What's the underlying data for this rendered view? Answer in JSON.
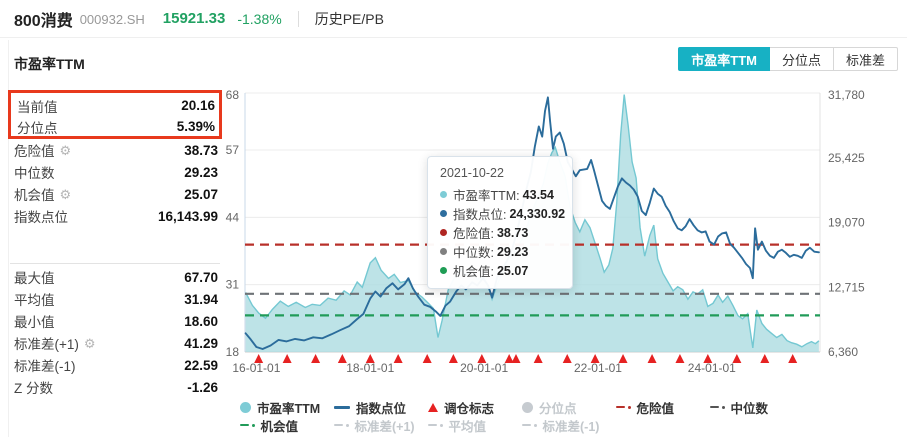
{
  "header": {
    "name": "800消费",
    "code": "000932.SH",
    "price": "15921.33",
    "change": "-1.38%",
    "menu": "历史PE/PB",
    "up_down_color": "#21a162"
  },
  "panel": {
    "title": "市盈率TTM"
  },
  "stats": {
    "highlight": [
      {
        "label": "当前值",
        "value": "20.16",
        "gear": false
      },
      {
        "label": "分位点",
        "value": "5.39%",
        "gear": false
      }
    ],
    "group1": [
      {
        "label": "危险值",
        "value": "38.73",
        "gear": true
      },
      {
        "label": "中位数",
        "value": "29.23",
        "gear": false
      },
      {
        "label": "机会值",
        "value": "25.07",
        "gear": true
      },
      {
        "label": "指数点位",
        "value": "16,143.99",
        "gear": false
      }
    ],
    "group2": [
      {
        "label": "最大值",
        "value": "67.70",
        "gear": false
      },
      {
        "label": "平均值",
        "value": "31.94",
        "gear": false
      },
      {
        "label": "最小值",
        "value": "18.60",
        "gear": false
      },
      {
        "label": "标准差(+1)",
        "value": "41.29",
        "gear": true
      },
      {
        "label": "标准差(-1)",
        "value": "22.59",
        "gear": false
      },
      {
        "label": "Z 分数",
        "value": "-1.26",
        "gear": false
      }
    ],
    "highlight_border_color": "#e8391d"
  },
  "tabs": [
    {
      "label": "市盈率TTM",
      "active": true
    },
    {
      "label": "分位点",
      "active": false
    },
    {
      "label": "标准差",
      "active": false
    }
  ],
  "tooltip": {
    "date": "2021-10-22",
    "rows": [
      {
        "label": "市盈率TTM",
        "value": "43.54",
        "color": "#7eccd6"
      },
      {
        "label": "指数点位",
        "value": "24,330.92",
        "color": "#2e6e9e"
      },
      {
        "label": "危险值",
        "value": "38.73",
        "color": "#b02622"
      },
      {
        "label": "中位数",
        "value": "29.23",
        "color": "#808080"
      },
      {
        "label": "机会值",
        "value": "25.07",
        "color": "#1f9d55"
      }
    ]
  },
  "chart_data": {
    "type": "line",
    "title": "市盈率TTM 与 指数点位",
    "grid": true,
    "left_axis": {
      "label": "市盈率TTM",
      "ticks": [
        18,
        31,
        44,
        57,
        68
      ],
      "range": [
        18,
        68
      ]
    },
    "right_axis": {
      "label": "指数点位",
      "ticks": [
        "6,360",
        "12,715",
        "19,070",
        "25,425",
        "31,780"
      ],
      "tick_values": [
        6360,
        12715,
        19070,
        25425,
        31780
      ],
      "range": [
        6360,
        31780
      ]
    },
    "x_axis": {
      "ticks": [
        "16-01-01",
        "18-01-01",
        "20-01-01",
        "22-01-01",
        "24-01-01"
      ],
      "tick_t": [
        2016,
        2018,
        2020,
        2022,
        2024
      ],
      "range": [
        2015.8,
        2025.9
      ]
    },
    "hlines": [
      {
        "name": "危险值",
        "value": 38.73,
        "color": "#b8302a"
      },
      {
        "name": "中位数",
        "value": 29.23,
        "color": "#6f7377"
      },
      {
        "name": "机会值",
        "value": 25.07,
        "color": "#219b59"
      }
    ],
    "series": [
      {
        "name": "市盈率TTM",
        "type": "area",
        "axis": "left",
        "line_color": "#74c8d2",
        "fill_color": "#aedde2",
        "points": [
          [
            2015.81,
            29.5
          ],
          [
            2015.93,
            27.0
          ],
          [
            2016.04,
            25.5
          ],
          [
            2016.16,
            24.5
          ],
          [
            2016.28,
            26.2
          ],
          [
            2016.42,
            27.8
          ],
          [
            2016.56,
            26.8
          ],
          [
            2016.7,
            27.6
          ],
          [
            2016.86,
            26.6
          ],
          [
            2016.98,
            27.2
          ],
          [
            2017.12,
            27.0
          ],
          [
            2017.26,
            28.4
          ],
          [
            2017.4,
            28.0
          ],
          [
            2017.54,
            29.8
          ],
          [
            2017.65,
            29.0
          ],
          [
            2017.77,
            31.5
          ],
          [
            2017.86,
            30.5
          ],
          [
            2018.0,
            35.2
          ],
          [
            2018.09,
            36.2
          ],
          [
            2018.19,
            33.8
          ],
          [
            2018.32,
            32.2
          ],
          [
            2018.42,
            33.0
          ],
          [
            2018.53,
            31.4
          ],
          [
            2018.67,
            31.8
          ],
          [
            2018.79,
            29.6
          ],
          [
            2018.91,
            28.6
          ],
          [
            2019.02,
            27.4
          ],
          [
            2019.11,
            26.4
          ],
          [
            2019.19,
            20.8
          ],
          [
            2019.26,
            24.0
          ],
          [
            2019.37,
            30.0
          ],
          [
            2019.49,
            32.6
          ],
          [
            2019.6,
            34.0
          ],
          [
            2019.68,
            32.8
          ],
          [
            2019.79,
            34.4
          ],
          [
            2019.88,
            32.0
          ],
          [
            2019.98,
            32.6
          ],
          [
            2020.07,
            30.8
          ],
          [
            2020.14,
            28.2
          ],
          [
            2020.23,
            31.0
          ],
          [
            2020.33,
            33.6
          ],
          [
            2020.42,
            35.8
          ],
          [
            2020.53,
            37.4
          ],
          [
            2020.61,
            38.6
          ],
          [
            2020.72,
            41.0
          ],
          [
            2020.82,
            44.5
          ],
          [
            2020.93,
            47.5
          ],
          [
            2021.04,
            50.5
          ],
          [
            2021.12,
            54.5
          ],
          [
            2021.19,
            56.5
          ],
          [
            2021.25,
            57.5
          ],
          [
            2021.33,
            54.7
          ],
          [
            2021.42,
            52.0
          ],
          [
            2021.51,
            46.0
          ],
          [
            2021.6,
            43.0
          ],
          [
            2021.68,
            41.2
          ],
          [
            2021.77,
            43.54
          ],
          [
            2021.86,
            42.0
          ],
          [
            2021.95,
            39.0
          ],
          [
            2022.04,
            36.0
          ],
          [
            2022.11,
            33.4
          ],
          [
            2022.19,
            34.8
          ],
          [
            2022.26,
            38.0
          ],
          [
            2022.33,
            47.0
          ],
          [
            2022.4,
            60.0
          ],
          [
            2022.46,
            67.7
          ],
          [
            2022.53,
            61.8
          ],
          [
            2022.6,
            54.7
          ],
          [
            2022.67,
            51.6
          ],
          [
            2022.74,
            42.0
          ],
          [
            2022.82,
            36.5
          ],
          [
            2022.91,
            40.5
          ],
          [
            2022.98,
            42.5
          ],
          [
            2023.05,
            36.0
          ],
          [
            2023.14,
            33.2
          ],
          [
            2023.23,
            31.5
          ],
          [
            2023.32,
            29.8
          ],
          [
            2023.4,
            30.6
          ],
          [
            2023.49,
            30.0
          ],
          [
            2023.58,
            28.2
          ],
          [
            2023.67,
            29.6
          ],
          [
            2023.75,
            29.2
          ],
          [
            2023.84,
            30.0
          ],
          [
            2023.93,
            26.8
          ],
          [
            2024.02,
            27.4
          ],
          [
            2024.11,
            29.0
          ],
          [
            2024.19,
            27.6
          ],
          [
            2024.28,
            28.8
          ],
          [
            2024.37,
            27.0
          ],
          [
            2024.46,
            25.0
          ],
          [
            2024.54,
            24.4
          ],
          [
            2024.63,
            25.4
          ],
          [
            2024.72,
            18.8
          ],
          [
            2024.79,
            26.1
          ],
          [
            2024.88,
            23.5
          ],
          [
            2024.96,
            22.4
          ],
          [
            2025.05,
            21.6
          ],
          [
            2025.14,
            20.8
          ],
          [
            2025.23,
            21.4
          ],
          [
            2025.32,
            20.2
          ],
          [
            2025.4,
            19.8
          ],
          [
            2025.49,
            19.5
          ],
          [
            2025.58,
            19.0
          ],
          [
            2025.67,
            19.6
          ],
          [
            2025.75,
            20.0
          ],
          [
            2025.82,
            19.6
          ],
          [
            2025.88,
            20.16
          ]
        ]
      },
      {
        "name": "指数点位",
        "type": "line",
        "axis": "right",
        "line_color": "#2b6c9b",
        "points": [
          [
            2015.81,
            8200
          ],
          [
            2015.9,
            7600
          ],
          [
            2016.0,
            6850
          ],
          [
            2016.11,
            6650
          ],
          [
            2016.25,
            7000
          ],
          [
            2016.39,
            7550
          ],
          [
            2016.53,
            7400
          ],
          [
            2016.68,
            7650
          ],
          [
            2016.84,
            7500
          ],
          [
            2017.0,
            7800
          ],
          [
            2017.16,
            7700
          ],
          [
            2017.32,
            8100
          ],
          [
            2017.47,
            8500
          ],
          [
            2017.63,
            8900
          ],
          [
            2017.77,
            9600
          ],
          [
            2017.88,
            10100
          ],
          [
            2018.0,
            11600
          ],
          [
            2018.09,
            12300
          ],
          [
            2018.18,
            11800
          ],
          [
            2018.28,
            12600
          ],
          [
            2018.39,
            13100
          ],
          [
            2018.49,
            12500
          ],
          [
            2018.6,
            13000
          ],
          [
            2018.67,
            13600
          ],
          [
            2018.75,
            12600
          ],
          [
            2018.84,
            11800
          ],
          [
            2018.95,
            11000
          ],
          [
            2019.05,
            10800
          ],
          [
            2019.16,
            10300
          ],
          [
            2019.23,
            9900
          ],
          [
            2019.32,
            10900
          ],
          [
            2019.4,
            11300
          ],
          [
            2019.51,
            12300
          ],
          [
            2019.6,
            12900
          ],
          [
            2019.68,
            12500
          ],
          [
            2019.79,
            13200
          ],
          [
            2019.88,
            12900
          ],
          [
            2019.98,
            13600
          ],
          [
            2020.07,
            12900
          ],
          [
            2020.14,
            11700
          ],
          [
            2020.23,
            13700
          ],
          [
            2020.32,
            14500
          ],
          [
            2020.4,
            15300
          ],
          [
            2020.49,
            16400
          ],
          [
            2020.58,
            18200
          ],
          [
            2020.67,
            20500
          ],
          [
            2020.75,
            22500
          ],
          [
            2020.82,
            24000
          ],
          [
            2020.89,
            26500
          ],
          [
            2020.96,
            28500
          ],
          [
            2021.02,
            27500
          ],
          [
            2021.07,
            30000
          ],
          [
            2021.12,
            31350
          ],
          [
            2021.16,
            29000
          ],
          [
            2021.21,
            26300
          ],
          [
            2021.26,
            27500
          ],
          [
            2021.33,
            27900
          ],
          [
            2021.4,
            26800
          ],
          [
            2021.47,
            25000
          ],
          [
            2021.54,
            24300
          ],
          [
            2021.61,
            23600
          ],
          [
            2021.68,
            24200
          ],
          [
            2021.81,
            24330.92
          ],
          [
            2021.88,
            25200
          ],
          [
            2021.93,
            24200
          ],
          [
            2022.0,
            22700
          ],
          [
            2022.07,
            21200
          ],
          [
            2022.14,
            20700
          ],
          [
            2022.21,
            20400
          ],
          [
            2022.28,
            21500
          ],
          [
            2022.35,
            22600
          ],
          [
            2022.42,
            23400
          ],
          [
            2022.49,
            23000
          ],
          [
            2022.56,
            22700
          ],
          [
            2022.63,
            22300
          ],
          [
            2022.7,
            21600
          ],
          [
            2022.77,
            20200
          ],
          [
            2022.84,
            19800
          ],
          [
            2022.91,
            21000
          ],
          [
            2022.98,
            22400
          ],
          [
            2023.05,
            21900
          ],
          [
            2023.12,
            21600
          ],
          [
            2023.19,
            20700
          ],
          [
            2023.26,
            20100
          ],
          [
            2023.33,
            19200
          ],
          [
            2023.4,
            18500
          ],
          [
            2023.47,
            18300
          ],
          [
            2023.54,
            18700
          ],
          [
            2023.61,
            19400
          ],
          [
            2023.68,
            18800
          ],
          [
            2023.75,
            18300
          ],
          [
            2023.82,
            18100
          ],
          [
            2023.89,
            18200
          ],
          [
            2023.96,
            17200
          ],
          [
            2024.04,
            16900
          ],
          [
            2024.11,
            17700
          ],
          [
            2024.18,
            18000
          ],
          [
            2024.25,
            18100
          ],
          [
            2024.32,
            17000
          ],
          [
            2024.39,
            16600
          ],
          [
            2024.46,
            16100
          ],
          [
            2024.53,
            15600
          ],
          [
            2024.6,
            15000
          ],
          [
            2024.67,
            14600
          ],
          [
            2024.72,
            13600
          ],
          [
            2024.76,
            18500
          ],
          [
            2024.81,
            16400
          ],
          [
            2024.88,
            17200
          ],
          [
            2024.95,
            16300
          ],
          [
            2025.02,
            15800
          ],
          [
            2025.09,
            15600
          ],
          [
            2025.16,
            16200
          ],
          [
            2025.23,
            16400
          ],
          [
            2025.3,
            16100
          ],
          [
            2025.37,
            15700
          ],
          [
            2025.44,
            15900
          ],
          [
            2025.51,
            15800
          ],
          [
            2025.58,
            15600
          ],
          [
            2025.65,
            16300
          ],
          [
            2025.72,
            16600
          ],
          [
            2025.8,
            16200
          ],
          [
            2025.88,
            16143.99
          ]
        ]
      }
    ],
    "markers": {
      "name": "调仓标志",
      "shape": "triangle-up",
      "color": "#e62222",
      "t": [
        2016.04,
        2016.54,
        2017.04,
        2017.51,
        2018.0,
        2018.49,
        2019.0,
        2019.46,
        2019.96,
        2020.44,
        2020.56,
        2020.95,
        2021.46,
        2021.95,
        2022.44,
        2022.95,
        2023.44,
        2023.93,
        2024.44,
        2024.93,
        2025.42
      ]
    },
    "legend": [
      {
        "label": "市盈率TTM",
        "swatch": "circle",
        "color": "#7eccd6",
        "active": true
      },
      {
        "label": "指数点位",
        "swatch": "line",
        "color": "#2b6c9b",
        "active": true
      },
      {
        "label": "调仓标志",
        "swatch": "triangle",
        "color": "#e62222",
        "active": true
      },
      {
        "label": "分位点",
        "swatch": "circle",
        "color": "#c6cbd0",
        "active": false
      },
      {
        "label": "危险值",
        "swatch": "dashdot",
        "color": "#b8302a",
        "active": true
      },
      {
        "label": "中位数",
        "swatch": "dashdot",
        "color": "#555555",
        "active": true
      },
      {
        "label": "机会值",
        "swatch": "dashdot",
        "color": "#219b59",
        "active": true
      },
      {
        "label": "标准差(+1)",
        "swatch": "dashdot",
        "color": "#c6cbd0",
        "active": false
      },
      {
        "label": "平均值",
        "swatch": "dashdot",
        "color": "#c6cbd0",
        "active": false
      },
      {
        "label": "标准差(-1)",
        "swatch": "dashdot",
        "color": "#c6cbd0",
        "active": false
      }
    ]
  }
}
